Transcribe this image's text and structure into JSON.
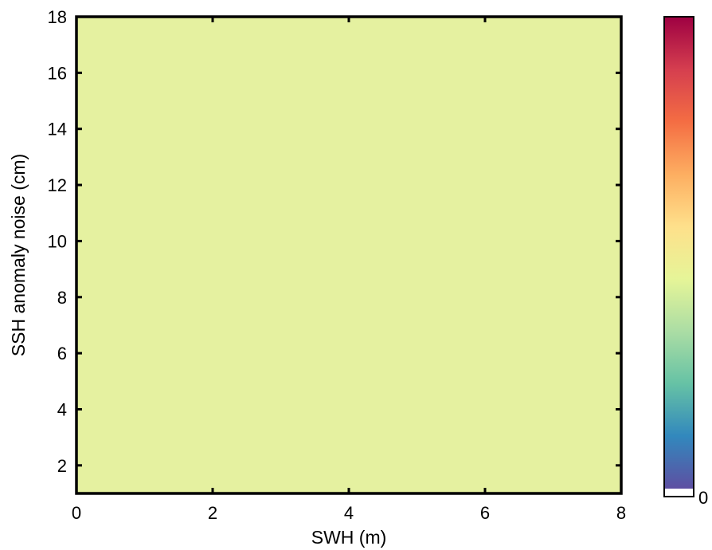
{
  "chart_data": {
    "type": "heatmap",
    "title": "",
    "xlabel": "SWH (m)",
    "ylabel": "SSH anomaly noise (cm)",
    "xlim": [
      0,
      8
    ],
    "ylim": [
      1,
      18
    ],
    "xticks": [
      0,
      2,
      4,
      6,
      8
    ],
    "xtick_labels": [
      "0",
      "2",
      "4",
      "6",
      "8"
    ],
    "yticks": [
      2,
      4,
      6,
      8,
      10,
      12,
      14,
      16,
      18
    ],
    "ytick_labels": [
      "2",
      "4",
      "6",
      "8",
      "10",
      "12",
      "14",
      "16",
      "18"
    ],
    "field": {
      "description_value": "uniform",
      "fill_color": "#e5f1a0"
    },
    "colorbar": {
      "colormap": "Spectral (reversed: purple-blue-green-yellow-orange-red)",
      "colors": [
        "#5e4fa2",
        "#3288bd",
        "#66c2a5",
        "#abdda4",
        "#e6f598",
        "#fee08b",
        "#fdae61",
        "#f46d43",
        "#d53e4f",
        "#9e0142"
      ],
      "under_color": "#ffffff",
      "tick_labels": [
        "0"
      ]
    },
    "grid": false
  }
}
